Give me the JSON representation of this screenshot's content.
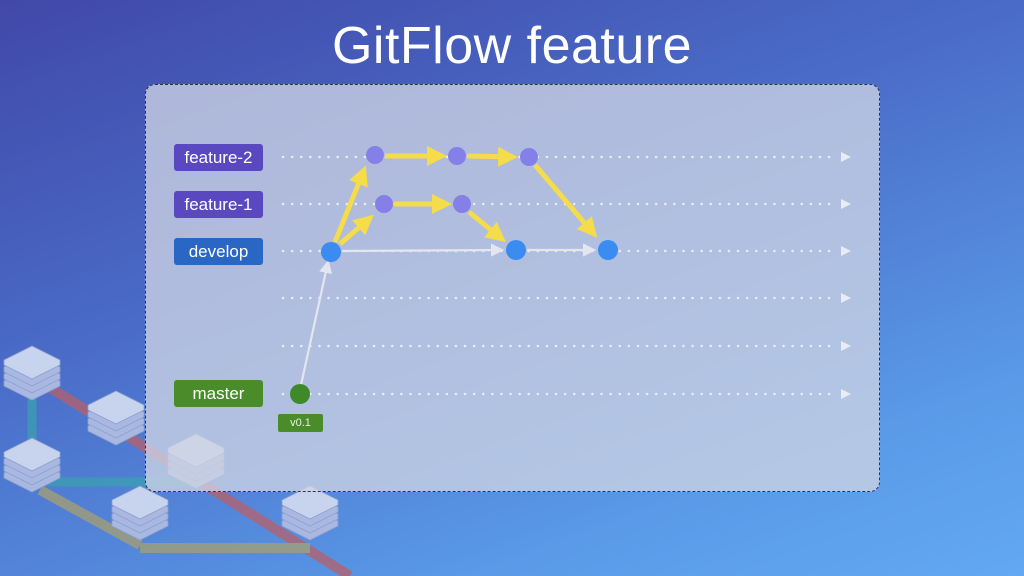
{
  "title": "GitFlow feature",
  "branches": [
    {
      "label": "feature-2",
      "color": "#5a48c0"
    },
    {
      "label": "feature-1",
      "color": "#5a48c0"
    },
    {
      "label": "develop",
      "color": "#2a66c4"
    },
    {
      "label": "",
      "color": ""
    },
    {
      "label": "",
      "color": ""
    },
    {
      "label": "master",
      "color": "#4a8c2a"
    }
  ],
  "tag": "v0.1",
  "colors": {
    "feature_node": "#8580e8",
    "develop_node": "#3a8cf0",
    "master_node": "#3f8a28",
    "merge_arrow": "#f5dc4a",
    "develop_arrow": "#e4e6ee"
  }
}
